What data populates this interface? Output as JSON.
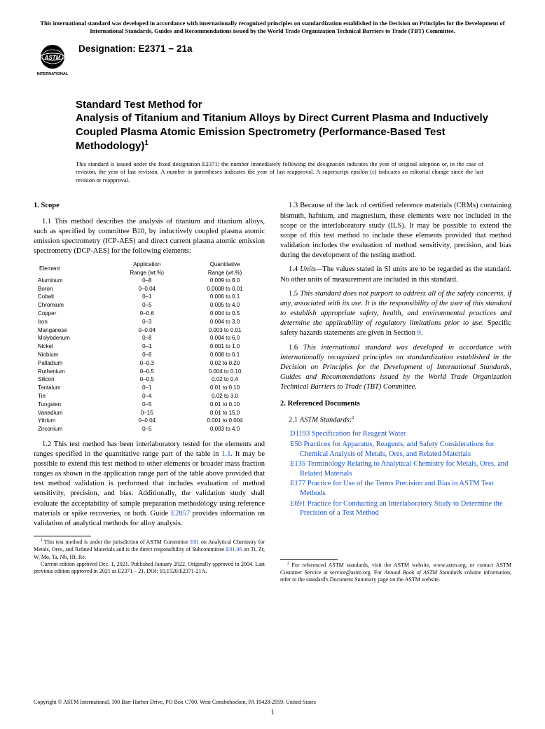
{
  "top_notice": "This international standard was developed in accordance with internationally recognized principles on standardization established in the Decision on Principles for the Development of International Standards, Guides and Recommendations issued by the World Trade Organization Technical Barriers to Trade (TBT) Committee.",
  "logo_text_top": "INTERNATIONAL",
  "designation_label": "Designation: ",
  "designation_code": "E2371 − 21a",
  "title_prefix": "Standard Test Method for",
  "title_main": "Analysis of Titanium and Titanium Alloys by Direct Current Plasma and Inductively Coupled Plasma Atomic Emission Spectrometry (Performance-Based Test Methodology)",
  "title_footnote_marker": "1",
  "issuance_note": "This standard is issued under the fixed designation E2371; the number immediately following the designation indicates the year of original adoption or, in the case of revision, the year of last revision. A number in parentheses indicates the year of last reapproval. A superscript epsilon (ε) indicates an editorial change since the last revision or reapproval.",
  "scope_heading": "1. Scope",
  "para_1_1": "1.1 This method describes the analysis of titanium and titanium alloys, such as specified by committee B10, by inductively coupled plasma atomic emission spectrometry (ICP-AES) and direct current plasma atomic emission spectrometry (DCP-AES) for the following elements:",
  "table_headers": {
    "element": "Element",
    "app_range_l1": "Application",
    "app_range_l2": "Range (wt.%)",
    "quant_range_l1": "Quantitative",
    "quant_range_l2": "Range (wt.%)"
  },
  "elements": [
    {
      "name": "Aluminum",
      "app": "0–8",
      "quant": "0.009 to 8.0"
    },
    {
      "name": "Boron",
      "app": "0–0.04",
      "quant": "0.0008 to 0.01"
    },
    {
      "name": "Cobalt",
      "app": "0–1",
      "quant": "0.006 to 0.1"
    },
    {
      "name": "Chromium",
      "app": "0–5",
      "quant": "0.005 to 4.0"
    },
    {
      "name": "Copper",
      "app": "0–0.6",
      "quant": "0.004 to 0.5"
    },
    {
      "name": "Iron",
      "app": "0–3",
      "quant": "0.004 to 3.0"
    },
    {
      "name": "Manganese",
      "app": "0–0.04",
      "quant": "0.003 to 0.01"
    },
    {
      "name": "Molybdenum",
      "app": "0–8",
      "quant": "0.004 to 6.0"
    },
    {
      "name": "Nickel",
      "app": "0–1",
      "quant": "0.001 to 1.0"
    },
    {
      "name": "Niobium",
      "app": "0–6",
      "quant": "0.008 to 0.1"
    },
    {
      "name": "Palladium",
      "app": "0–0.3",
      "quant": "0.02 to 0.20"
    },
    {
      "name": "Ruthenium",
      "app": "0–0.5",
      "quant": "0.004 to 0.10"
    },
    {
      "name": "Silicon",
      "app": "0–0.5",
      "quant": "0.02 to 0.4"
    },
    {
      "name": "Tantalum",
      "app": "0–1",
      "quant": "0.01 to 0.10"
    },
    {
      "name": "Tin",
      "app": "0–4",
      "quant": "0.02 to 3.0"
    },
    {
      "name": "Tungsten",
      "app": "0–5",
      "quant": "0.01 to 0.10"
    },
    {
      "name": "Vanadium",
      "app": "0–15",
      "quant": "0.01 to 15.0"
    },
    {
      "name": "Yttrium",
      "app": "0–0.04",
      "quant": "0.001 to 0.004"
    },
    {
      "name": "Zirconium",
      "app": "0–5",
      "quant": "0.003 to 4.0"
    }
  ],
  "para_1_2_a": "1.2 This test method has been interlaboratory tested for the elements and ranges specified in the quantitative range part of the table in ",
  "para_1_2_link1": "1.1",
  "para_1_2_b": ". It may be possible to extend this test method to other elements or broader mass fraction ranges as shown in the application range part of the table above provided that test method validation is performed that includes evaluation of method sensitivity, precision, and bias. Additionally, the validation study shall evaluate the acceptability of sample preparation methodology using reference materials or spike recoveries, or both. Guide ",
  "para_1_2_link2": "E2857",
  "para_1_2_c": " provides information on validation of analytical methods for alloy analysis.",
  "para_1_3": "1.3 Because of the lack of certified reference materials (CRMs) containing bismuth, hafnium, and magnesium, these elements were not included in the scope or the interlaboratory study (ILS). It may be possible to extend the scope of this test method to include these elements provided that method validation includes the evaluation of method sensitivity, precision, and bias during the development of the testing method.",
  "para_1_4_a": "1.4 ",
  "para_1_4_label": "Units—",
  "para_1_4_b": "The values stated in SI units are to be regarded as the standard. No other units of measurement are included in this standard.",
  "para_1_5_a": "1.5 ",
  "para_1_5_italic": "This standard does not purport to address all of the safety concerns, if any, associated with its use. It is the responsibility of the user of this standard to establish appropriate safety, health, and environmental practices and determine the applicability of regulatory limitations prior to use.",
  "para_1_5_b": " Specific safety hazards statements are given in Section ",
  "para_1_5_link": "9",
  "para_1_5_c": ".",
  "para_1_6_a": "1.6 ",
  "para_1_6_italic": "This international standard was developed in accordance with internationally recognized principles on standardization established in the Decision on Principles for the Development of International Standards, Guides and Recommendations issued by the World Trade Organization Technical Barriers to Trade (TBT) Committee.",
  "refs_heading": "2. Referenced Documents",
  "refs_sub_a": "2.1 ",
  "refs_sub_italic": "ASTM Standards:",
  "refs_sub_marker": "2",
  "references": [
    {
      "code": "D1193",
      "title": "Specification for Reagent Water"
    },
    {
      "code": "E50",
      "title": "Practices for Apparatus, Reagents, and Safety Considerations for Chemical Analysis of Metals, Ores, and Related Materials"
    },
    {
      "code": "E135",
      "title": "Terminology Relating to Analytical Chemistry for Metals, Ores, and Related Materials"
    },
    {
      "code": "E177",
      "title": "Practice for Use of the Terms Precision and Bias in ASTM Test Methods"
    },
    {
      "code": "E691",
      "title": "Practice for Conducting an Interlaboratory Study to Determine the Precision of a Test Method"
    }
  ],
  "footnote1_a": "This test method is under the jurisdiction of ASTM Committee ",
  "footnote1_link1": "E01",
  "footnote1_b": " on Analytical Chemistry for Metals, Ores, and Related Materials and is the direct responsibility of Subcommittee ",
  "footnote1_link2": "E01.06",
  "footnote1_c": " on Ti, Zr, W, Mo, Ta, Nb, Hf, Re.",
  "footnote1_para2": "Current edition approved Dec. 1, 2021. Published January 2022. Originally approved in 2004. Last previous edition approved in 2021 as E2371 – 21. DOI: 10.1520/E2371-21A.",
  "footnote2_a": "For referenced ASTM standards, visit the ASTM website, www.astm.org, or contact ASTM Customer Service at service@astm.org. For ",
  "footnote2_italic": "Annual Book of ASTM Standards",
  "footnote2_b": " volume information, refer to the standard's Document Summary page on the ASTM website.",
  "copyright": "Copyright © ASTM International, 100 Barr Harbor Drive, PO Box C700, West Conshohocken, PA 19428-2959. United States",
  "page_number": "1",
  "colors": {
    "link": "#1a4fc4",
    "text": "#000000",
    "background": "#ffffff"
  }
}
